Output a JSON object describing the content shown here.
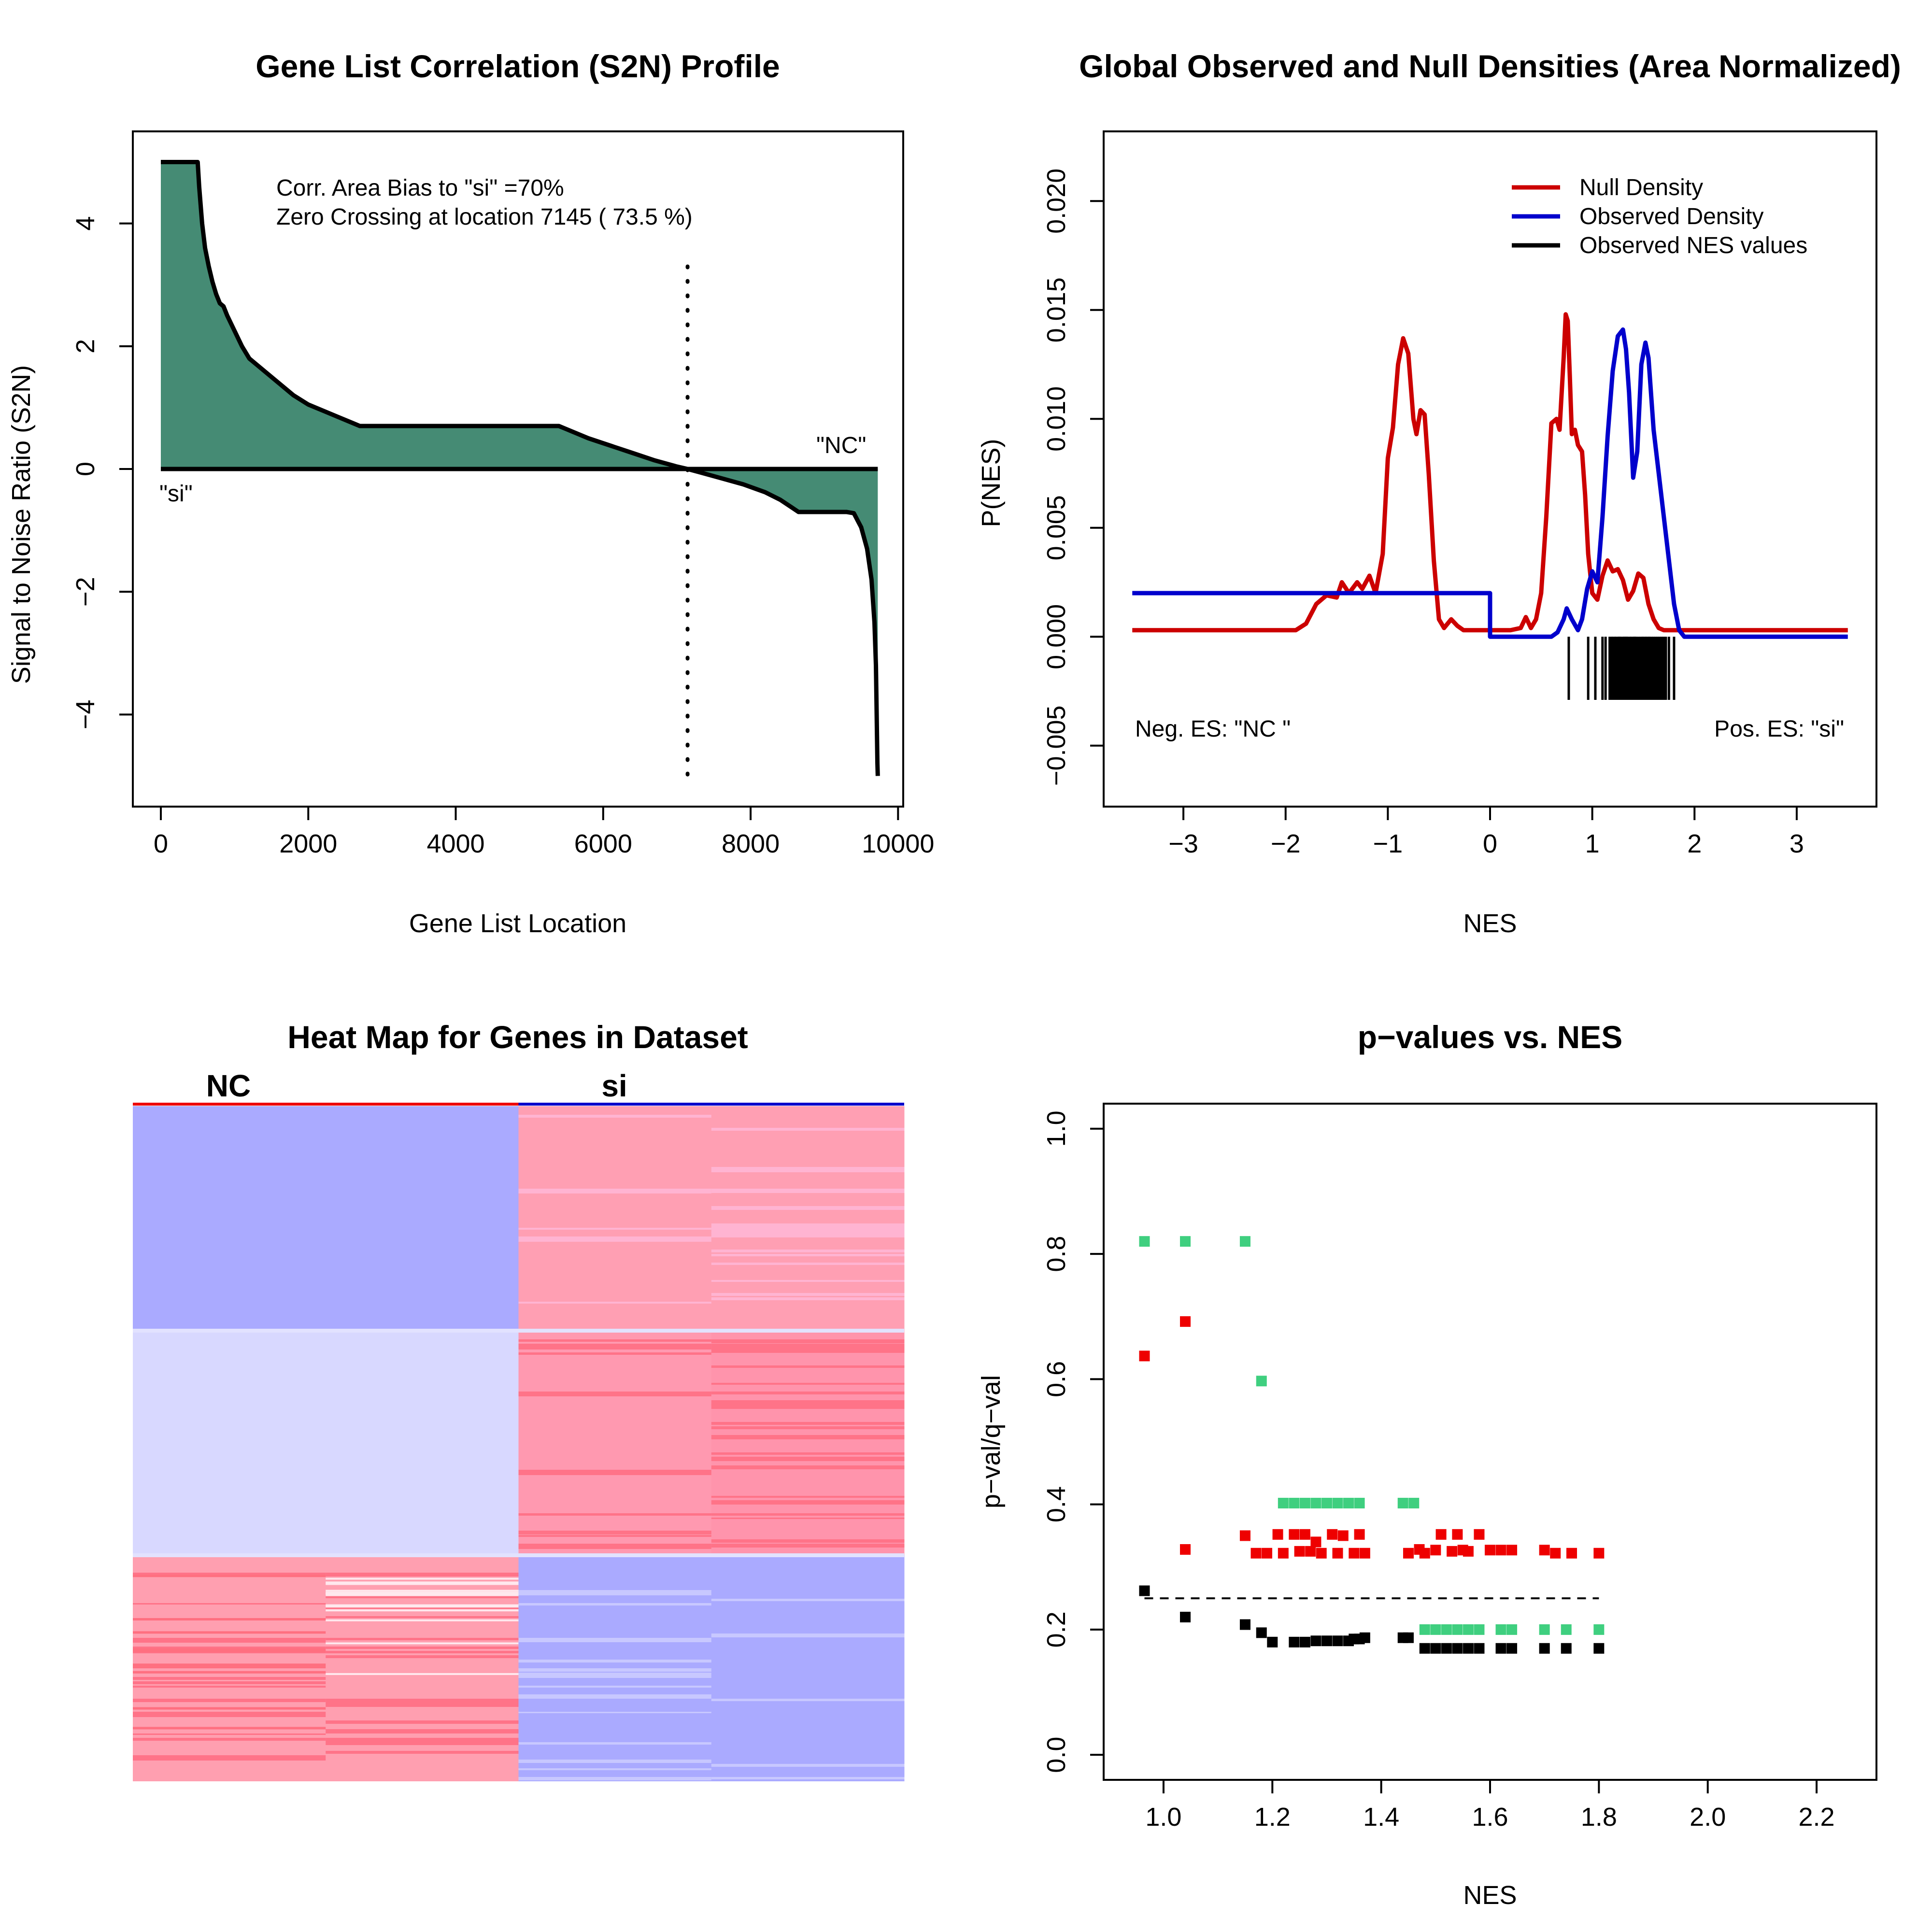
{
  "chart_data": [
    {
      "type": "area",
      "title": "Gene List Correlation (S2N) Profile",
      "xlabel": "Gene List Location",
      "ylabel": "Signal to Noise Ratio (S2N)",
      "xlim": [
        0,
        10000
      ],
      "ylim": [
        -5,
        5
      ],
      "xticks": [
        0,
        2000,
        4000,
        6000,
        8000,
        10000
      ],
      "yticks": [
        -4,
        -2,
        0,
        2,
        4
      ],
      "fill_color": "#458b74",
      "zero_crossing_x": 7145,
      "annotations": {
        "bias": "Corr. Area Bias to \"si\" =70%",
        "crossing": "Zero Crossing at location  7145  ( 73.5  %)",
        "left_label": "\"si\"",
        "right_label": "\"NC\""
      },
      "x": [
        0,
        50,
        500,
        520,
        560,
        600,
        650,
        700,
        750,
        800,
        850,
        900,
        1000,
        1100,
        1200,
        1300,
        1400,
        1600,
        1800,
        2000,
        2200,
        2400,
        2600,
        2700,
        3000,
        4000,
        5000,
        5400,
        5500,
        5800,
        6100,
        6400,
        6700,
        7000,
        7145,
        7300,
        7600,
        7900,
        8200,
        8400,
        8550,
        8650,
        9000,
        9300,
        9400,
        9500,
        9580,
        9640,
        9680,
        9700,
        9710,
        9720,
        9725
      ],
      "values": [
        5.0,
        5.0,
        5.0,
        4.6,
        4.0,
        3.6,
        3.3,
        3.05,
        2.85,
        2.7,
        2.65,
        2.5,
        2.25,
        2.0,
        1.8,
        1.7,
        1.6,
        1.4,
        1.2,
        1.05,
        0.95,
        0.85,
        0.75,
        0.7,
        0.7,
        0.7,
        0.7,
        0.7,
        0.65,
        0.5,
        0.38,
        0.26,
        0.14,
        0.04,
        0.0,
        -0.05,
        -0.15,
        -0.25,
        -0.38,
        -0.5,
        -0.62,
        -0.7,
        -0.7,
        -0.7,
        -0.72,
        -0.95,
        -1.3,
        -1.8,
        -2.5,
        -3.2,
        -4.0,
        -4.8,
        -5.0
      ]
    },
    {
      "type": "line",
      "title": "Global Observed and Null Densities (Area Normalized)",
      "xlabel": "NES",
      "ylabel": "P(NES)",
      "xlim": [
        -3.5,
        3.5
      ],
      "ylim": [
        -0.007,
        0.023
      ],
      "xticks": [
        -3,
        -2,
        -1,
        0,
        1,
        2,
        3
      ],
      "yticks": [
        -0.005,
        0.0,
        0.005,
        0.01,
        0.015,
        0.02
      ],
      "ytick_labels": [
        "−0.005",
        "0.000",
        "0.005",
        "0.010",
        "0.015",
        "0.020"
      ],
      "xtick_labels": [
        "−3",
        "−2",
        "−1",
        "0",
        "1",
        "2",
        "3"
      ],
      "legend": [
        "Null Density",
        "Observed Density",
        "Observed NES values"
      ],
      "legend_position": "top-right",
      "annotations": {
        "neg": "Neg. ES: \"NC \"",
        "pos": "Pos. ES: \"si\""
      },
      "series": [
        {
          "name": "Null Density",
          "color": "#cc0000",
          "x": [
            -3.5,
            -1.9,
            -1.8,
            -1.7,
            -1.6,
            -1.5,
            -1.45,
            -1.38,
            -1.3,
            -1.25,
            -1.18,
            -1.12,
            -1.05,
            -1.0,
            -0.95,
            -0.9,
            -0.85,
            -0.8,
            -0.75,
            -0.72,
            -0.68,
            -0.64,
            -0.6,
            -0.55,
            -0.5,
            -0.45,
            -0.38,
            -0.32,
            -0.26,
            -0.2,
            0.0,
            0.2,
            0.3,
            0.35,
            0.4,
            0.45,
            0.5,
            0.55,
            0.6,
            0.65,
            0.68,
            0.72,
            0.74,
            0.76,
            0.78,
            0.8,
            0.83,
            0.86,
            0.9,
            0.93,
            0.96,
            1.0,
            1.05,
            1.1,
            1.15,
            1.2,
            1.25,
            1.3,
            1.35,
            1.4,
            1.45,
            1.5,
            1.55,
            1.6,
            1.65,
            1.7,
            1.8,
            1.9,
            2.0,
            3.5
          ],
          "values": [
            0.0003,
            0.0003,
            0.0006,
            0.0015,
            0.0019,
            0.0018,
            0.0025,
            0.002,
            0.0025,
            0.0022,
            0.0028,
            0.002,
            0.0038,
            0.0082,
            0.0096,
            0.0125,
            0.0137,
            0.013,
            0.01,
            0.0093,
            0.0104,
            0.0102,
            0.0075,
            0.0035,
            0.0008,
            0.0004,
            0.0008,
            0.0005,
            0.0003,
            0.0003,
            0.0003,
            0.0003,
            0.0004,
            0.0009,
            0.0004,
            0.0008,
            0.002,
            0.0055,
            0.0098,
            0.01,
            0.0095,
            0.0128,
            0.0148,
            0.0145,
            0.012,
            0.0093,
            0.0095,
            0.0088,
            0.0085,
            0.0065,
            0.0038,
            0.002,
            0.0017,
            0.0028,
            0.0035,
            0.003,
            0.0031,
            0.0026,
            0.0017,
            0.0021,
            0.0029,
            0.0027,
            0.0015,
            0.0008,
            0.0004,
            0.0003,
            0.0003,
            0.0003,
            0.0003,
            0.0003
          ]
        },
        {
          "name": "Observed Density",
          "color": "#0000cc",
          "x": [
            -3.5,
            0.0,
            0.0,
            0.6,
            0.66,
            0.72,
            0.75,
            0.8,
            0.86,
            0.9,
            0.95,
            1.0,
            1.05,
            1.1,
            1.15,
            1.2,
            1.25,
            1.3,
            1.33,
            1.36,
            1.4,
            1.44,
            1.48,
            1.52,
            1.55,
            1.6,
            1.65,
            1.7,
            1.75,
            1.8,
            1.85,
            1.9,
            3.5
          ],
          "values": [
            0.002,
            0.002,
            0.0,
            0.0,
            0.0002,
            0.0008,
            0.0013,
            0.0008,
            0.0003,
            0.0008,
            0.0022,
            0.003,
            0.0025,
            0.0055,
            0.0092,
            0.0122,
            0.0138,
            0.0141,
            0.0132,
            0.0112,
            0.0073,
            0.0085,
            0.0125,
            0.0135,
            0.0128,
            0.0095,
            0.0075,
            0.0055,
            0.0035,
            0.0015,
            0.0003,
            0.0,
            0.0
          ]
        }
      ],
      "nes_values": [
        0.77,
        0.96,
        1.03,
        1.1,
        1.13,
        1.17,
        1.19,
        1.2,
        1.22,
        1.23,
        1.25,
        1.26,
        1.27,
        1.28,
        1.3,
        1.31,
        1.32,
        1.33,
        1.34,
        1.35,
        1.37,
        1.38,
        1.4,
        1.41,
        1.42,
        1.43,
        1.45,
        1.47,
        1.49,
        1.5,
        1.52,
        1.53,
        1.55,
        1.56,
        1.58,
        1.6,
        1.62,
        1.64,
        1.66,
        1.68,
        1.7,
        1.72,
        1.75,
        1.8
      ]
    },
    {
      "type": "heatmap",
      "title": "Heat Map for Genes in Dataset",
      "columns": [
        "NC",
        "si"
      ],
      "column_colors": [
        "#ee0000",
        "#0000cc"
      ]
    },
    {
      "type": "scatter",
      "title": "p−values vs. NES",
      "xlabel": "NES",
      "ylabel": "p−val/q−val",
      "xlim": [
        0.89,
        2.31
      ],
      "ylim": [
        -0.04,
        1.04
      ],
      "xticks": [
        1.0,
        1.2,
        1.4,
        1.6,
        1.8,
        2.0,
        2.2
      ],
      "xtick_labels": [
        "1.0",
        "1.2",
        "1.4",
        "1.6",
        "1.8",
        "2.0",
        "2.2"
      ],
      "yticks": [
        0.0,
        0.2,
        0.4,
        0.6,
        0.8,
        1.0
      ],
      "ytick_labels": [
        "0.0",
        "0.2",
        "0.4",
        "0.6",
        "0.8",
        "1.0"
      ],
      "threshold": 0.25,
      "series": [
        {
          "color": "#3fcf7f",
          "x": [
            0.965,
            1.04,
            1.15,
            1.18,
            1.22,
            1.24,
            1.26,
            1.28,
            1.3,
            1.32,
            1.34,
            1.36,
            1.44,
            1.46,
            1.48,
            1.5,
            1.52,
            1.54,
            1.56,
            1.58,
            1.62,
            1.64,
            1.7,
            1.74,
            1.8
          ],
          "values": [
            0.82,
            0.82,
            0.82,
            0.597,
            0.402,
            0.402,
            0.402,
            0.402,
            0.402,
            0.402,
            0.402,
            0.402,
            0.402,
            0.402,
            0.2,
            0.2,
            0.2,
            0.2,
            0.2,
            0.2,
            0.2,
            0.2,
            0.2,
            0.2,
            0.2
          ]
        },
        {
          "color": "#ee0000",
          "x": [
            0.965,
            1.04,
            1.04,
            1.15,
            1.17,
            1.19,
            1.21,
            1.22,
            1.24,
            1.25,
            1.26,
            1.27,
            1.28,
            1.29,
            1.31,
            1.32,
            1.33,
            1.35,
            1.36,
            1.37,
            1.45,
            1.47,
            1.48,
            1.5,
            1.51,
            1.53,
            1.54,
            1.55,
            1.56,
            1.58,
            1.6,
            1.62,
            1.64,
            1.7,
            1.72,
            1.75,
            1.8
          ],
          "values": [
            0.637,
            0.692,
            0.328,
            0.35,
            0.322,
            0.322,
            0.352,
            0.322,
            0.352,
            0.325,
            0.352,
            0.325,
            0.34,
            0.322,
            0.352,
            0.322,
            0.35,
            0.322,
            0.352,
            0.322,
            0.322,
            0.328,
            0.322,
            0.327,
            0.352,
            0.325,
            0.352,
            0.327,
            0.325,
            0.352,
            0.327,
            0.327,
            0.327,
            0.327,
            0.322,
            0.322,
            0.322
          ]
        },
        {
          "color": "#000000",
          "x": [
            0.965,
            1.04,
            1.15,
            1.18,
            1.2,
            1.24,
            1.26,
            1.28,
            1.3,
            1.32,
            1.34,
            1.35,
            1.36,
            1.37,
            1.44,
            1.45,
            1.48,
            1.5,
            1.52,
            1.54,
            1.56,
            1.58,
            1.62,
            1.64,
            1.7,
            1.74,
            1.8
          ],
          "values": [
            0.262,
            0.22,
            0.208,
            0.195,
            0.18,
            0.18,
            0.18,
            0.182,
            0.182,
            0.182,
            0.182,
            0.185,
            0.185,
            0.187,
            0.187,
            0.187,
            0.17,
            0.17,
            0.17,
            0.17,
            0.17,
            0.17,
            0.17,
            0.17,
            0.17,
            0.17,
            0.17
          ]
        }
      ]
    }
  ]
}
